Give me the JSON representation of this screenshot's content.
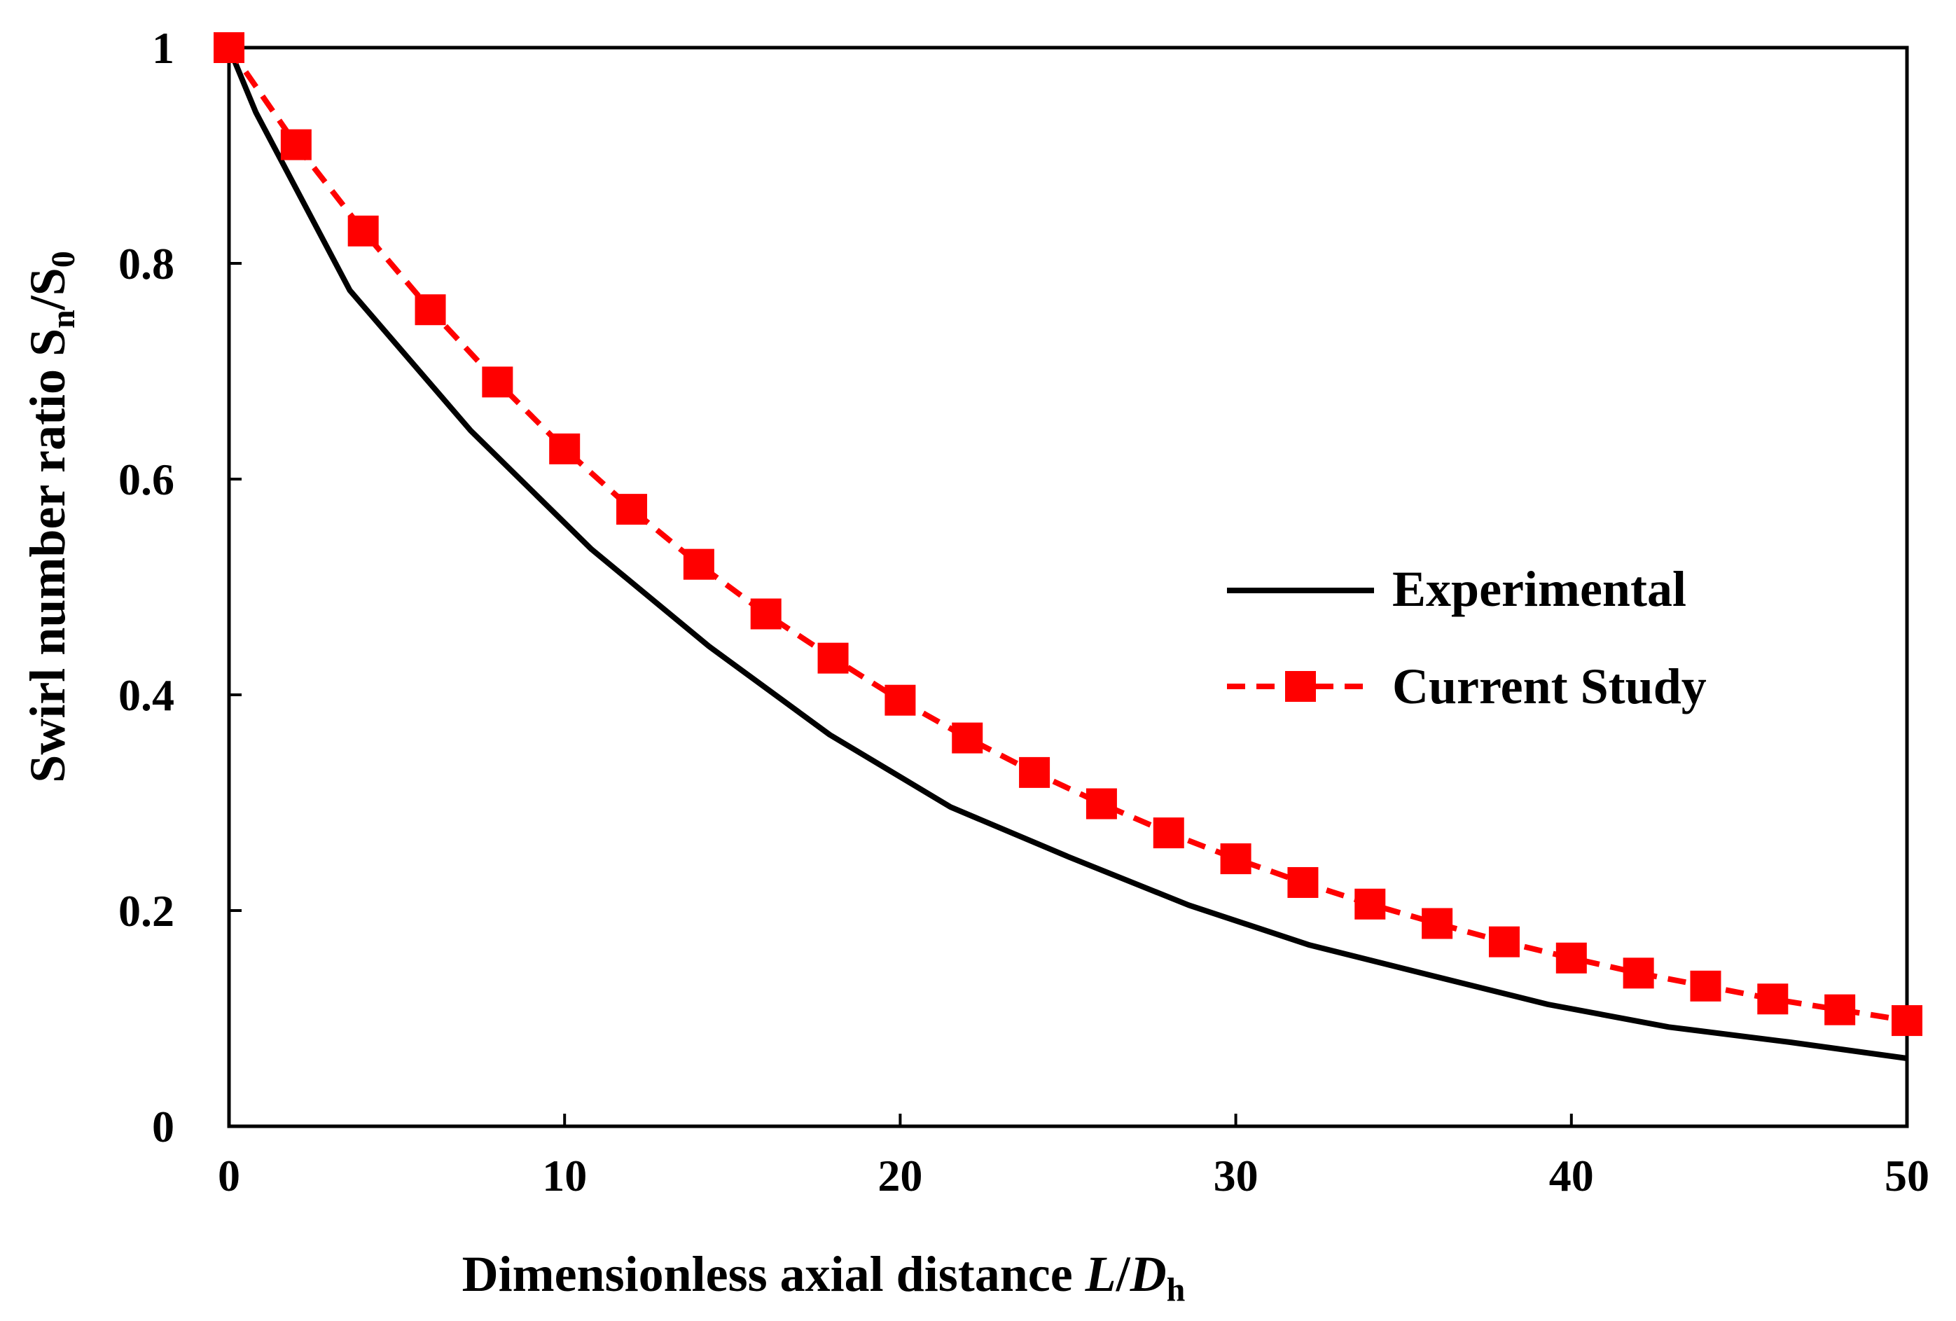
{
  "chart_data": {
    "type": "line",
    "title": "",
    "xlabel": {
      "main": "Dimensionless axial distance ",
      "var1": "L",
      "slash": "/",
      "var2": "D",
      "sub": "h"
    },
    "ylabel": {
      "main": "Swirl number ratio S",
      "sub1": "n",
      "slash": "/S",
      "sub2": "0"
    },
    "xlim": [
      0,
      50
    ],
    "ylim": [
      0,
      1
    ],
    "xticks": [
      0,
      10,
      20,
      30,
      40,
      50
    ],
    "yticks": [
      0,
      0.2,
      0.4,
      0.6,
      0.8,
      1
    ],
    "xtick_labels": [
      "0",
      "10",
      "20",
      "30",
      "40",
      "50"
    ],
    "ytick_labels": [
      "0",
      "0.2",
      "0.4",
      "0.6",
      "0.8",
      "1"
    ],
    "grid": false,
    "legend_position": "center-right",
    "series": [
      {
        "name": "Experimental",
        "color": "#000000",
        "style": "solid",
        "marker": "none",
        "x": [
          0,
          0.8,
          3.6,
          7.2,
          10.8,
          14.3,
          17.9,
          21.5,
          25.0,
          28.6,
          32.2,
          35.8,
          39.3,
          42.9,
          46.5,
          50
        ],
        "y": [
          1.0,
          0.94,
          0.775,
          0.645,
          0.535,
          0.445,
          0.363,
          0.296,
          0.25,
          0.205,
          0.168,
          0.14,
          0.113,
          0.092,
          0.078,
          0.063
        ]
      },
      {
        "name": "Current Study",
        "color": "#ff0000",
        "style": "dashed",
        "marker": "square",
        "x": [
          0,
          2,
          4,
          6,
          8,
          10,
          12,
          14,
          16,
          18,
          20,
          22,
          24,
          26,
          28,
          30,
          32,
          34,
          36,
          38,
          40,
          42,
          44,
          46,
          48,
          50
        ],
        "y": [
          1.0,
          0.91,
          0.83,
          0.757,
          0.69,
          0.628,
          0.572,
          0.521,
          0.475,
          0.434,
          0.395,
          0.36,
          0.328,
          0.299,
          0.272,
          0.248,
          0.226,
          0.206,
          0.188,
          0.171,
          0.156,
          0.142,
          0.13,
          0.118,
          0.108,
          0.098
        ]
      }
    ]
  }
}
